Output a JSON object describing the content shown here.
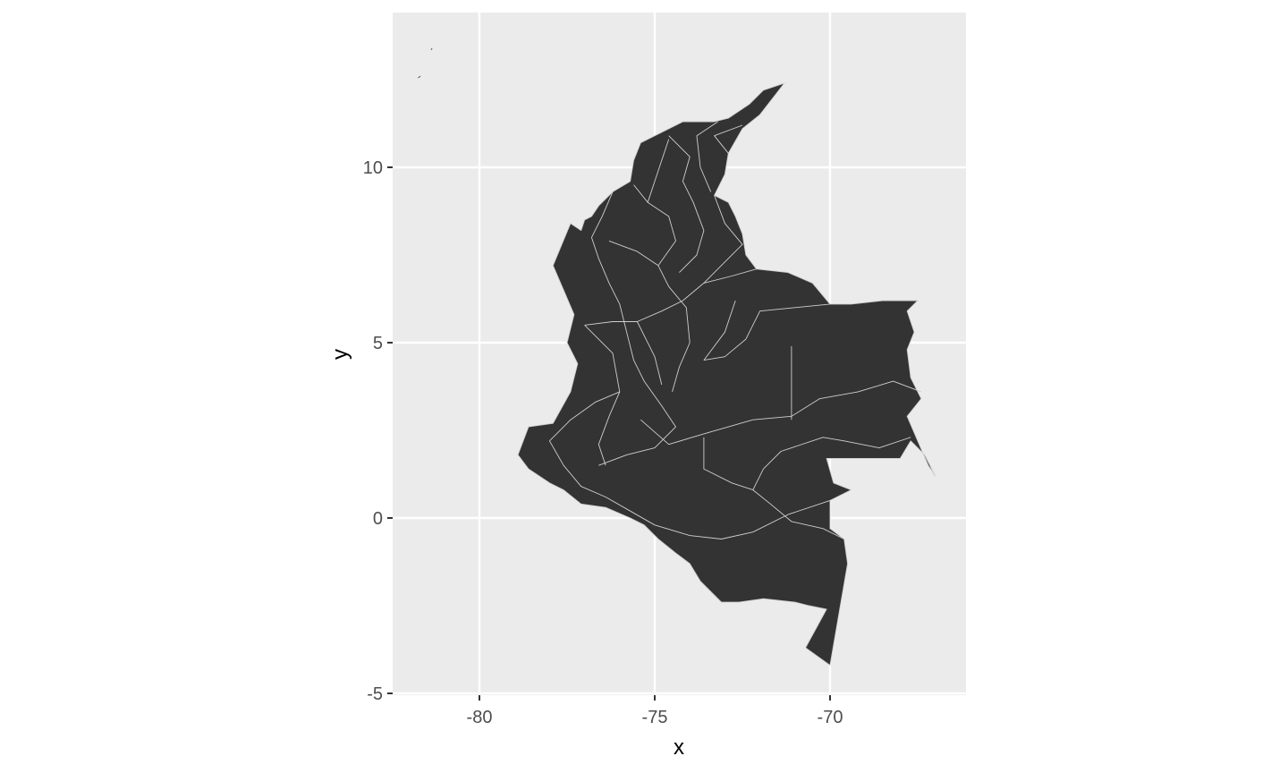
{
  "chart_data": {
    "type": "map",
    "title": "",
    "xlabel": "x",
    "ylabel": "y",
    "x_ticks": [
      "-80",
      "-75",
      "-70"
    ],
    "x_tick_values": [
      -80,
      -75,
      -70
    ],
    "y_ticks": [
      "-5",
      "0",
      "5",
      "10"
    ],
    "y_tick_values": [
      -5,
      0,
      5,
      10
    ],
    "xlim": [
      -82.5,
      -66.2
    ],
    "ylim": [
      -5,
      14.4
    ],
    "grid": true,
    "region": "Colombia departments",
    "fill_color": "#333333",
    "border_color": "#cfcfcf",
    "panel_color": "#ebebeb",
    "outline_lonlat": [
      [
        -71.3,
        12.4
      ],
      [
        -71.9,
        12.2
      ],
      [
        -72.3,
        11.8
      ],
      [
        -72.9,
        11.4
      ],
      [
        -73.3,
        11.3
      ],
      [
        -74.2,
        11.3
      ],
      [
        -74.8,
        11.0
      ],
      [
        -75.4,
        10.7
      ],
      [
        -75.6,
        10.2
      ],
      [
        -75.7,
        9.6
      ],
      [
        -76.2,
        9.3
      ],
      [
        -76.6,
        8.9
      ],
      [
        -76.8,
        8.6
      ],
      [
        -77.0,
        8.5
      ],
      [
        -77.1,
        8.2
      ],
      [
        -77.4,
        8.4
      ],
      [
        -77.9,
        7.2
      ],
      [
        -77.6,
        6.5
      ],
      [
        -77.3,
        5.8
      ],
      [
        -77.5,
        5.0
      ],
      [
        -77.2,
        4.4
      ],
      [
        -77.4,
        3.6
      ],
      [
        -77.9,
        2.7
      ],
      [
        -78.6,
        2.6
      ],
      [
        -78.9,
        1.8
      ],
      [
        -78.6,
        1.4
      ],
      [
        -78.0,
        1.0
      ],
      [
        -77.6,
        0.8
      ],
      [
        -77.1,
        0.4
      ],
      [
        -76.4,
        0.3
      ],
      [
        -75.7,
        0.0
      ],
      [
        -75.3,
        -0.2
      ],
      [
        -74.9,
        -0.6
      ],
      [
        -74.4,
        -1.0
      ],
      [
        -74.0,
        -1.3
      ],
      [
        -73.7,
        -1.8
      ],
      [
        -73.1,
        -2.4
      ],
      [
        -72.6,
        -2.4
      ],
      [
        -71.9,
        -2.3
      ],
      [
        -71.0,
        -2.4
      ],
      [
        -70.6,
        -2.5
      ],
      [
        -70.1,
        -2.6
      ],
      [
        -70.7,
        -3.7
      ],
      [
        -70.0,
        -4.2
      ],
      [
        -69.5,
        -1.3
      ],
      [
        -69.6,
        -0.6
      ],
      [
        -70.0,
        -0.3
      ],
      [
        -70.0,
        0.5
      ],
      [
        -69.4,
        0.8
      ],
      [
        -69.9,
        1.0
      ],
      [
        -70.1,
        1.7
      ],
      [
        -69.7,
        1.7
      ],
      [
        -68.0,
        1.7
      ],
      [
        -67.7,
        2.2
      ],
      [
        -67.3,
        1.8
      ],
      [
        -67.0,
        1.2
      ],
      [
        -67.2,
        1.5
      ],
      [
        -67.5,
        2.2
      ],
      [
        -67.8,
        2.9
      ],
      [
        -67.4,
        3.4
      ],
      [
        -67.7,
        4.0
      ],
      [
        -67.8,
        4.8
      ],
      [
        -67.6,
        5.3
      ],
      [
        -67.8,
        5.9
      ],
      [
        -67.5,
        6.2
      ],
      [
        -68.5,
        6.2
      ],
      [
        -69.4,
        6.1
      ],
      [
        -70.0,
        6.1
      ],
      [
        -70.5,
        6.7
      ],
      [
        -71.2,
        7.0
      ],
      [
        -72.1,
        7.1
      ],
      [
        -72.4,
        7.5
      ],
      [
        -72.5,
        8.1
      ],
      [
        -72.7,
        8.6
      ],
      [
        -72.9,
        9.0
      ],
      [
        -73.3,
        9.2
      ],
      [
        -73.0,
        9.8
      ],
      [
        -72.9,
        10.4
      ],
      [
        -72.5,
        11.1
      ],
      [
        -72.0,
        11.5
      ],
      [
        -71.3,
        12.4
      ]
    ],
    "inner_borders_lonlat": [
      [
        [
          -72.1,
          7.1
        ],
        [
          -72.8,
          6.9
        ],
        [
          -73.6,
          6.7
        ],
        [
          -74.2,
          6.2
        ],
        [
          -74.8,
          5.9
        ],
        [
          -75.5,
          5.6
        ],
        [
          -76.2,
          5.6
        ],
        [
          -77.0,
          5.5
        ]
      ],
      [
        [
          -70.0,
          6.1
        ],
        [
          -71.0,
          6.0
        ],
        [
          -72.0,
          5.9
        ],
        [
          -72.4,
          5.1
        ],
        [
          -73.0,
          4.6
        ],
        [
          -73.6,
          4.5
        ]
      ],
      [
        [
          -71.1,
          4.9
        ],
        [
          -71.1,
          2.8
        ]
      ],
      [
        [
          -67.4,
          3.6
        ],
        [
          -68.2,
          3.9
        ],
        [
          -69.2,
          3.6
        ],
        [
          -70.3,
          3.4
        ],
        [
          -71.1,
          2.9
        ],
        [
          -72.2,
          2.8
        ],
        [
          -73.6,
          2.4
        ],
        [
          -74.6,
          2.1
        ],
        [
          -75.4,
          2.8
        ]
      ],
      [
        [
          -67.7,
          2.3
        ],
        [
          -68.6,
          2.0
        ],
        [
          -69.6,
          2.2
        ],
        [
          -70.2,
          2.3
        ],
        [
          -71.4,
          1.9
        ],
        [
          -71.9,
          1.4
        ],
        [
          -72.2,
          0.8
        ]
      ],
      [
        [
          -73.6,
          2.3
        ],
        [
          -73.6,
          1.4
        ],
        [
          -72.8,
          1.0
        ],
        [
          -72.2,
          0.8
        ],
        [
          -71.7,
          0.4
        ],
        [
          -71.1,
          -0.1
        ],
        [
          -70.2,
          -0.3
        ],
        [
          -69.6,
          -0.6
        ]
      ],
      [
        [
          -70.0,
          0.5
        ],
        [
          -71.2,
          0.1
        ],
        [
          -72.2,
          -0.4
        ],
        [
          -73.1,
          -0.6
        ],
        [
          -74.0,
          -0.5
        ],
        [
          -75.0,
          -0.2
        ],
        [
          -75.7,
          0.2
        ]
      ],
      [
        [
          -75.7,
          0.2
        ],
        [
          -76.4,
          0.6
        ],
        [
          -77.1,
          0.9
        ],
        [
          -77.6,
          1.5
        ],
        [
          -78.0,
          2.2
        ],
        [
          -77.4,
          2.8
        ],
        [
          -76.7,
          3.3
        ],
        [
          -76.0,
          3.6
        ]
      ],
      [
        [
          -76.6,
          1.5
        ],
        [
          -75.8,
          1.8
        ],
        [
          -75.0,
          2.0
        ],
        [
          -74.4,
          2.6
        ],
        [
          -74.8,
          3.2
        ],
        [
          -75.3,
          3.9
        ],
        [
          -75.6,
          4.5
        ],
        [
          -75.8,
          5.3
        ],
        [
          -76.0,
          6.1
        ],
        [
          -76.3,
          6.7
        ]
      ],
      [
        [
          -77.0,
          5.5
        ],
        [
          -76.2,
          4.7
        ],
        [
          -76.0,
          3.6
        ],
        [
          -76.3,
          2.9
        ],
        [
          -76.6,
          2.1
        ],
        [
          -76.4,
          1.5
        ]
      ],
      [
        [
          -76.3,
          6.7
        ],
        [
          -76.6,
          7.4
        ],
        [
          -76.8,
          8.0
        ],
        [
          -76.5,
          8.6
        ],
        [
          -76.2,
          9.3
        ]
      ],
      [
        [
          -76.3,
          7.9
        ],
        [
          -75.5,
          7.6
        ],
        [
          -74.9,
          7.2
        ],
        [
          -74.4,
          7.9
        ],
        [
          -74.6,
          8.6
        ],
        [
          -75.2,
          9.0
        ],
        [
          -75.6,
          9.5
        ]
      ],
      [
        [
          -74.9,
          7.2
        ],
        [
          -74.6,
          6.6
        ],
        [
          -74.1,
          6.0
        ],
        [
          -74.0,
          5.0
        ],
        [
          -74.3,
          4.3
        ],
        [
          -74.5,
          3.6
        ]
      ],
      [
        [
          -74.3,
          7.0
        ],
        [
          -73.8,
          7.5
        ],
        [
          -73.6,
          8.2
        ],
        [
          -73.9,
          9.0
        ],
        [
          -74.2,
          9.6
        ],
        [
          -74.0,
          10.3
        ],
        [
          -74.6,
          10.9
        ]
      ],
      [
        [
          -73.4,
          9.3
        ],
        [
          -73.7,
          10.0
        ],
        [
          -73.8,
          10.9
        ],
        [
          -73.2,
          11.3
        ]
      ],
      [
        [
          -72.9,
          10.4
        ],
        [
          -73.3,
          10.9
        ],
        [
          -72.5,
          11.2
        ]
      ],
      [
        [
          -75.2,
          9.0
        ],
        [
          -74.9,
          9.9
        ],
        [
          -74.6,
          10.8
        ]
      ],
      [
        [
          -73.6,
          6.7
        ],
        [
          -73.0,
          7.3
        ],
        [
          -72.5,
          7.8
        ],
        [
          -73.0,
          8.4
        ],
        [
          -73.3,
          9.2
        ]
      ],
      [
        [
          -73.6,
          4.5
        ],
        [
          -73.0,
          5.3
        ],
        [
          -72.7,
          6.2
        ]
      ],
      [
        [
          -75.5,
          5.6
        ],
        [
          -75.0,
          4.6
        ],
        [
          -74.8,
          3.8
        ]
      ]
    ],
    "islands_lonlat": [
      [
        [
          -81.75,
          12.55
        ],
        [
          -81.68,
          12.6
        ]
      ],
      [
        [
          -81.38,
          13.35
        ],
        [
          -81.35,
          13.39
        ]
      ]
    ]
  }
}
